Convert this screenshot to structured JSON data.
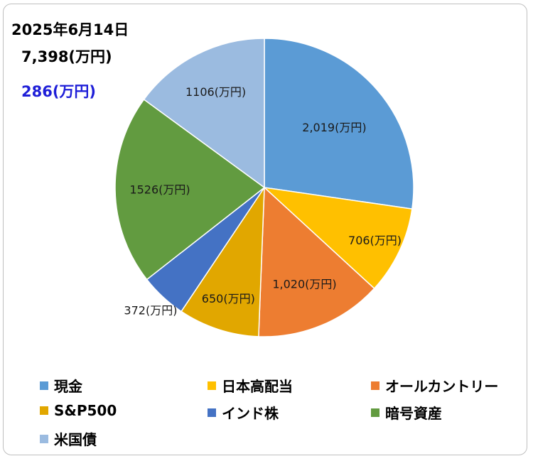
{
  "header": {
    "date": "2025年6月14日",
    "total": "7,398(万円)",
    "diff": "286(万円)"
  },
  "chart_data": {
    "type": "pie",
    "title": "",
    "slices": [
      {
        "name": "現金",
        "value": 2019,
        "label": "2,019(万円)",
        "color": "#5b9bd5"
      },
      {
        "name": "日本高配当",
        "value": 706,
        "label": "706(万円)",
        "color": "#ffc000"
      },
      {
        "name": "オールカントリー",
        "value": 1020,
        "label": "1,020(万円)",
        "color": "#ed7d31"
      },
      {
        "name": "S&P500",
        "value": 650,
        "label": "650(万円)",
        "color": "#e1a700"
      },
      {
        "name": "インド株",
        "value": 372,
        "label": "372(万円)",
        "color": "#4472c4"
      },
      {
        "name": "暗号資産",
        "value": 1526,
        "label": "1526(万円)",
        "color": "#629b40"
      },
      {
        "name": "米国債",
        "value": 1106,
        "label": "1106(万円)",
        "color": "#9bbbe0"
      }
    ],
    "legend_position": "bottom"
  }
}
